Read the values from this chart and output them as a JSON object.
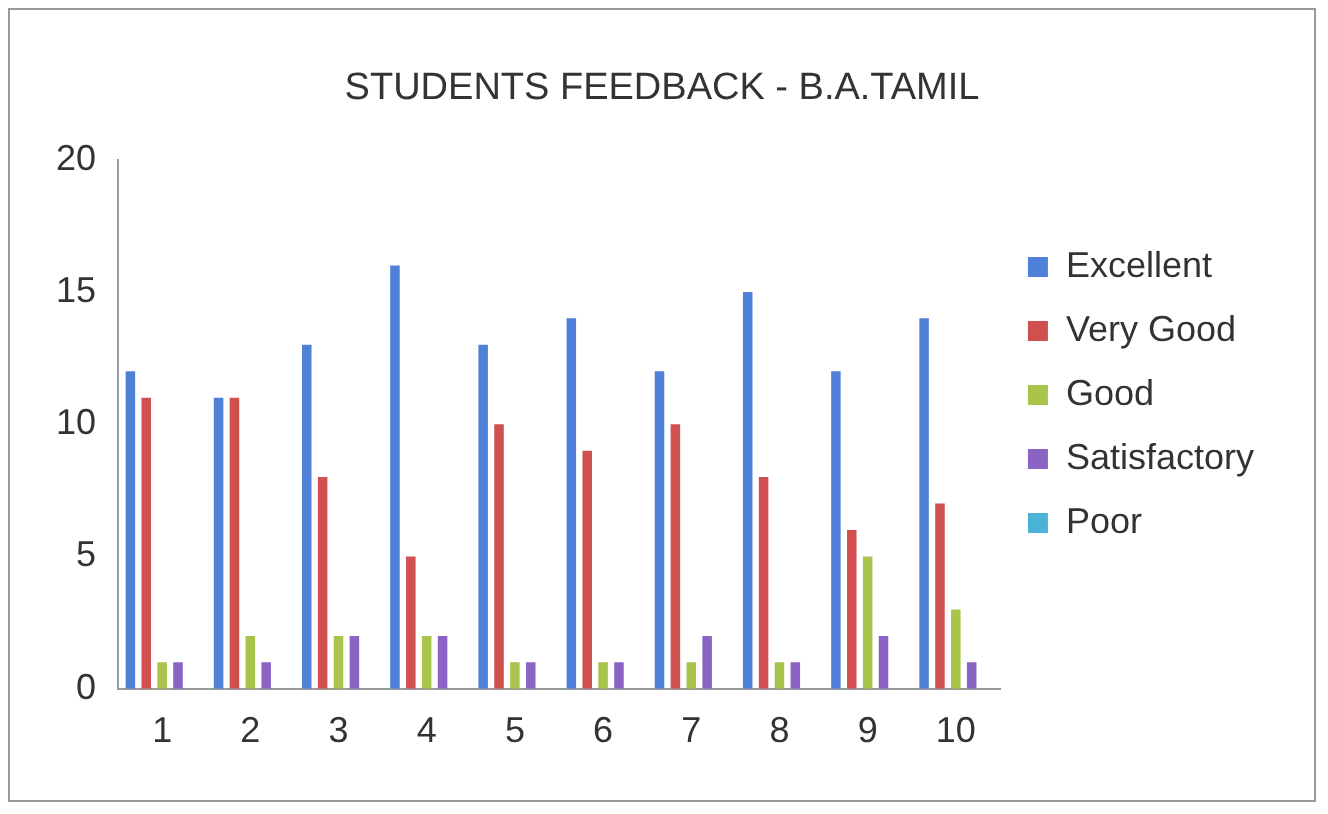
{
  "chart_data": {
    "type": "bar",
    "title": "STUDENTS FEEDBACK - B.A.TAMIL",
    "categories": [
      "1",
      "2",
      "3",
      "4",
      "5",
      "6",
      "7",
      "8",
      "9",
      "10"
    ],
    "series": [
      {
        "name": "Excellent",
        "color": "#4f81d9",
        "values": [
          12,
          11,
          13,
          16,
          13,
          14,
          12,
          15,
          12,
          14
        ]
      },
      {
        "name": "Very Good",
        "color": "#d04f4f",
        "values": [
          11,
          11,
          8,
          5,
          10,
          9,
          10,
          8,
          6,
          7
        ]
      },
      {
        "name": "Good",
        "color": "#a8c44a",
        "values": [
          1,
          2,
          2,
          2,
          1,
          1,
          1,
          1,
          5,
          3
        ]
      },
      {
        "name": "Satisfactory",
        "color": "#8a63c4",
        "values": [
          1,
          1,
          2,
          2,
          1,
          1,
          2,
          1,
          2,
          1
        ]
      },
      {
        "name": "Poor",
        "color": "#4bb3d8",
        "values": [
          0,
          0,
          0,
          0,
          0,
          0,
          0,
          0,
          0,
          0
        ]
      }
    ],
    "ylim": [
      0,
      20
    ],
    "yticks": [
      0,
      5,
      10,
      15,
      20
    ],
    "grid": false,
    "legend": "right"
  }
}
